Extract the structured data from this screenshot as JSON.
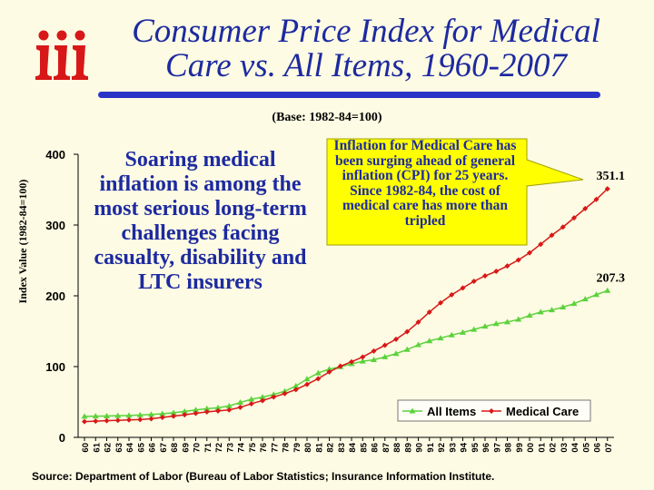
{
  "slide": {
    "title_line1": "Consumer Price Index for Medical",
    "title_line2": "Care vs. All Items, 1960-2007",
    "base_note": "(Base: 1982-84=100)",
    "soaring_text": "Soaring medical inflation is among the most serious long-term challenges facing casualty, disability and LTC insurers",
    "callout_text": "Inflation for Medical Care has been surging ahead of general inflation (CPI) for 25 years. Since 1982-84, the cost of medical care has more than tripled",
    "source": "Source: Department of Labor (Bureau of Labor Statistics; Insurance Information Institute.",
    "colors": {
      "title": "#1d2aa0",
      "background": "#fdfbe3",
      "rule": "#2a35c8",
      "logo": "#d81818"
    }
  },
  "chart_data": {
    "type": "line",
    "title": "Consumer Price Index for Medical Care vs. All Items, 1960-2007",
    "xlabel": "",
    "ylabel": "Index Value (1982-84=100)",
    "ylim": [
      0,
      400
    ],
    "yticks": [
      "0",
      "100",
      "200",
      "300",
      "400"
    ],
    "x": [
      "60",
      "61",
      "62",
      "63",
      "64",
      "65",
      "66",
      "67",
      "68",
      "69",
      "70",
      "71",
      "72",
      "73",
      "74",
      "75",
      "76",
      "77",
      "78",
      "79",
      "80",
      "81",
      "82",
      "83",
      "84",
      "85",
      "86",
      "87",
      "88",
      "89",
      "90",
      "91",
      "92",
      "93",
      "94",
      "95",
      "96",
      "97",
      "98",
      "99",
      "00",
      "01",
      "02",
      "03",
      "04",
      "05",
      "06",
      "07"
    ],
    "series": [
      {
        "name": "All Items",
        "color": "#5cd23c",
        "marker": "triangle",
        "values": [
          29.6,
          29.9,
          30.2,
          30.6,
          31.0,
          31.5,
          32.4,
          33.4,
          34.8,
          36.7,
          38.8,
          40.5,
          41.8,
          44.4,
          49.3,
          53.8,
          56.9,
          60.6,
          65.2,
          72.6,
          82.4,
          90.9,
          96.5,
          99.6,
          103.9,
          107.6,
          109.6,
          113.6,
          118.3,
          124.0,
          130.7,
          136.2,
          140.3,
          144.5,
          148.2,
          152.4,
          156.9,
          160.5,
          163.0,
          166.6,
          172.2,
          177.1,
          179.9,
          184.0,
          188.9,
          195.3,
          201.6,
          207.3
        ]
      },
      {
        "name": "Medical Care",
        "color": "#d81818",
        "marker": "diamond",
        "values": [
          22.3,
          22.9,
          23.5,
          24.1,
          24.6,
          25.2,
          26.3,
          28.2,
          29.9,
          31.9,
          34.0,
          36.1,
          37.3,
          38.8,
          42.4,
          47.5,
          52.0,
          57.0,
          61.8,
          67.5,
          74.9,
          82.9,
          92.5,
          100.6,
          106.8,
          113.5,
          122.0,
          130.1,
          138.6,
          149.3,
          162.8,
          177.0,
          190.1,
          201.4,
          211.0,
          220.5,
          228.2,
          234.6,
          242.1,
          250.6,
          260.8,
          272.8,
          285.6,
          297.1,
          310.1,
          323.2,
          336.2,
          351.1
        ]
      }
    ],
    "data_labels": [
      {
        "series": "Medical Care",
        "text": "351.1"
      },
      {
        "series": "All Items",
        "text": "207.3"
      }
    ],
    "legend_position": "bottom-right"
  }
}
